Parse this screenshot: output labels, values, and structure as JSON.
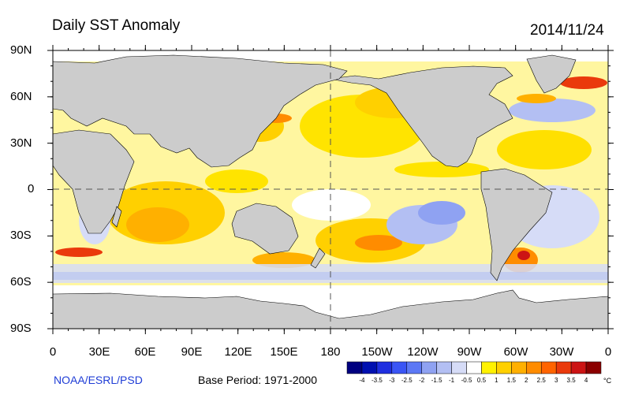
{
  "title": "Daily SST Anomaly",
  "date": "2014/11/24",
  "latitude_labels": [
    "90N",
    "60N",
    "30N",
    "0",
    "30S",
    "60S",
    "90S"
  ],
  "longitude_labels": [
    "0",
    "30E",
    "60E",
    "90E",
    "120E",
    "150E",
    "180",
    "150W",
    "120W",
    "90W",
    "60W",
    "30W",
    "0"
  ],
  "credit": "NOAA/ESRL/PSD",
  "base_period": "Base Period: 1971-2000",
  "colorbar": {
    "ticks": [
      "-4",
      "-3.5",
      "-3",
      "-2.5",
      "-2",
      "-1.5",
      "-1",
      "-0.5",
      "0.5",
      "1",
      "1.5",
      "2",
      "2.5",
      "3",
      "3.5",
      "4"
    ],
    "unit": "°C",
    "colors": [
      "#000080",
      "#0010b0",
      "#1f2fe0",
      "#3a55f5",
      "#5c78f5",
      "#8fa2f2",
      "#b3bff3",
      "#d6dcf7",
      "#ffffff",
      "#fff200",
      "#ffd000",
      "#ffb000",
      "#ff8c00",
      "#ff6400",
      "#ea3a0c",
      "#cc1414",
      "#8b0000"
    ]
  },
  "colors": {
    "land": "#cccccc",
    "ice": "#ffffff",
    "coast": "#000000"
  }
}
